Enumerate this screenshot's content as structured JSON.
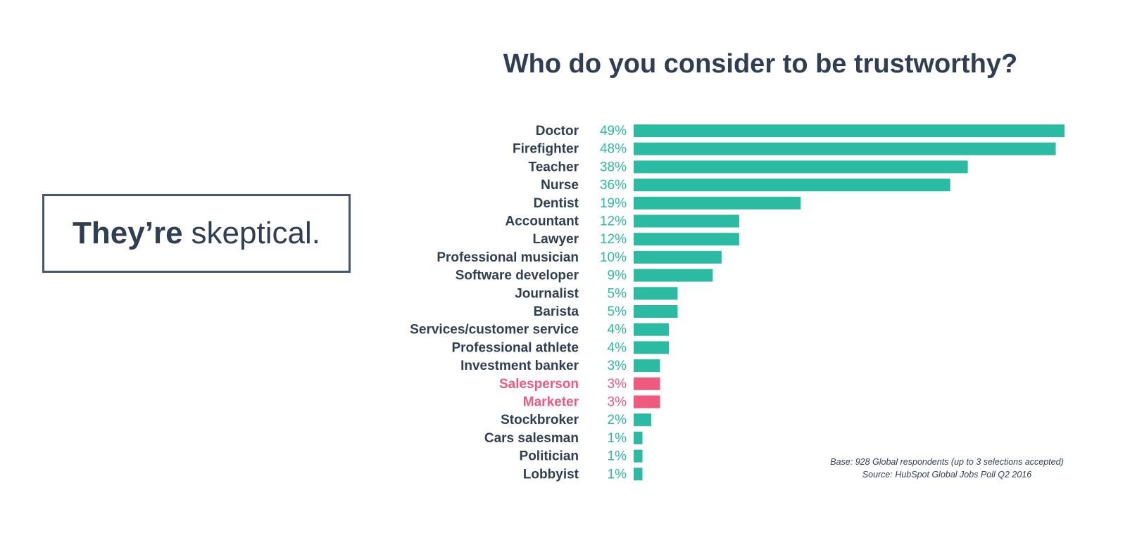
{
  "callout": {
    "bold": "They’re",
    "light": "skeptical."
  },
  "chart_data": {
    "type": "bar",
    "orientation": "horizontal",
    "title": "Who do you consider to be trustworthy?",
    "categories": [
      "Doctor",
      "Firefighter",
      "Teacher",
      "Nurse",
      "Dentist",
      "Accountant",
      "Lawyer",
      "Professional musician",
      "Software developer",
      "Journalist",
      "Barista",
      "Services/customer service",
      "Professional athlete",
      "Investment banker",
      "Salesperson",
      "Marketer",
      "Stockbroker",
      "Cars salesman",
      "Politician",
      "Lobbyist"
    ],
    "values": [
      49,
      48,
      38,
      36,
      19,
      12,
      12,
      10,
      9,
      5,
      5,
      4,
      4,
      3,
      3,
      3,
      2,
      1,
      1,
      1
    ],
    "value_labels": [
      "49%",
      "48%",
      "38%",
      "36%",
      "19%",
      "12%",
      "12%",
      "10%",
      "9%",
      "5%",
      "5%",
      "4%",
      "4%",
      "3%",
      "3%",
      "3%",
      "2%",
      "1%",
      "1%",
      "1%"
    ],
    "highlighted": [
      "Salesperson",
      "Marketer"
    ],
    "colors": {
      "bar": "#2bbba2",
      "highlight": "#f05a7e",
      "label": "#2f3e52",
      "value": "#2bbba2"
    },
    "xlim": [
      0,
      49
    ],
    "grid": false,
    "legend": "none"
  },
  "footnote": {
    "base": "Base: 928 Global respondents (up to 3 selections accepted)",
    "source": "Source: HubSpot Global Jobs Poll Q2 2016"
  }
}
